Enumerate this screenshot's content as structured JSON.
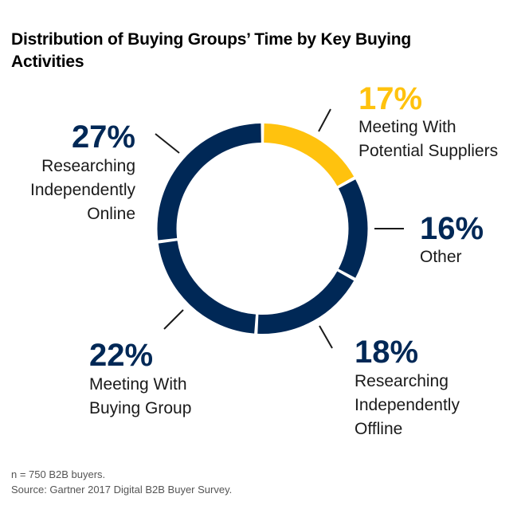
{
  "title": "Distribution of Buying Groups’ Time by Key Buying Activities",
  "footer": {
    "note": "n = 750 B2B buyers.",
    "source": "Source: Gartner 2017 Digital B2B Buyer Survey."
  },
  "colors": {
    "accent": "#FFC20E",
    "primary": "#002856"
  },
  "chart_data": {
    "type": "pie",
    "variant": "donut",
    "title": "Distribution of Buying Groups’ Time by Key Buying Activities",
    "start": "top, clockwise",
    "slices": [
      {
        "label": "Meeting With Potential Suppliers",
        "label_lines": [
          "Meeting With",
          "Potential Suppliers"
        ],
        "value": 17,
        "value_label": "17%",
        "color": "#FFC20E"
      },
      {
        "label": "Other",
        "label_lines": [
          "Other"
        ],
        "value": 16,
        "value_label": "16%",
        "color": "#002856"
      },
      {
        "label": "Researching Independently Offline",
        "label_lines": [
          "Researching",
          "Independently",
          "Offline"
        ],
        "value": 18,
        "value_label": "18%",
        "color": "#002856"
      },
      {
        "label": "Meeting With Buying Group",
        "label_lines": [
          "Meeting With",
          "Buying Group"
        ],
        "value": 22,
        "value_label": "22%",
        "color": "#002856"
      },
      {
        "label": "Researching Independently Online",
        "label_lines": [
          "Researching",
          "Independently",
          "Online"
        ],
        "value": 27,
        "value_label": "27%",
        "color": "#002856"
      }
    ]
  }
}
